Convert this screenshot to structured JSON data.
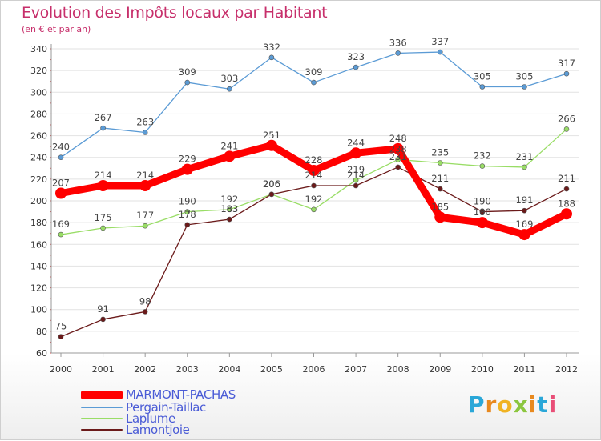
{
  "chart_data": {
    "type": "line",
    "title": "Evolution des Impôts locaux par Habitant",
    "subtitle": "(en € et par an)",
    "xlabel": "",
    "ylabel": "",
    "x": [
      "2000",
      "2001",
      "2002",
      "2003",
      "2004",
      "2005",
      "2006",
      "2007",
      "2008",
      "2009",
      "2010",
      "2011",
      "2012"
    ],
    "ylim": [
      60,
      340
    ],
    "yticks": [
      60,
      80,
      100,
      120,
      140,
      160,
      180,
      200,
      220,
      240,
      260,
      280,
      300,
      320,
      340
    ],
    "grid": "horizontal",
    "series": [
      {
        "name": "MARMONT-PACHAS",
        "color": "#ff0000",
        "values": [
          207,
          214,
          214,
          229,
          241,
          251,
          228,
          244,
          248,
          185,
          180,
          169,
          188
        ]
      },
      {
        "name": "Pergain-Taillac",
        "color": "#5b9bd5",
        "values": [
          240,
          267,
          263,
          309,
          303,
          332,
          309,
          323,
          336,
          337,
          305,
          305,
          317
        ]
      },
      {
        "name": "Laplume",
        "color": "#99dd66",
        "values": [
          169,
          175,
          177,
          190,
          192,
          206,
          192,
          219,
          238,
          235,
          232,
          231,
          266
        ]
      },
      {
        "name": "Lamontjoie",
        "color": "#6b1a1a",
        "values": [
          75,
          91,
          98,
          178,
          183,
          206,
          214,
          214,
          231,
          211,
          190,
          191,
          211
        ]
      }
    ]
  },
  "legend": {
    "items": [
      {
        "name": "MARMONT-PACHAS",
        "color": "#ff0000"
      },
      {
        "name": "Pergain-Taillac",
        "color": "#5b9bd5"
      },
      {
        "name": "Laplume",
        "color": "#99dd66"
      },
      {
        "name": "Lamontjoie",
        "color": "#6b1a1a"
      }
    ]
  },
  "logo": {
    "letters": [
      "P",
      "r",
      "o",
      "x",
      "i",
      "t",
      "i"
    ]
  }
}
